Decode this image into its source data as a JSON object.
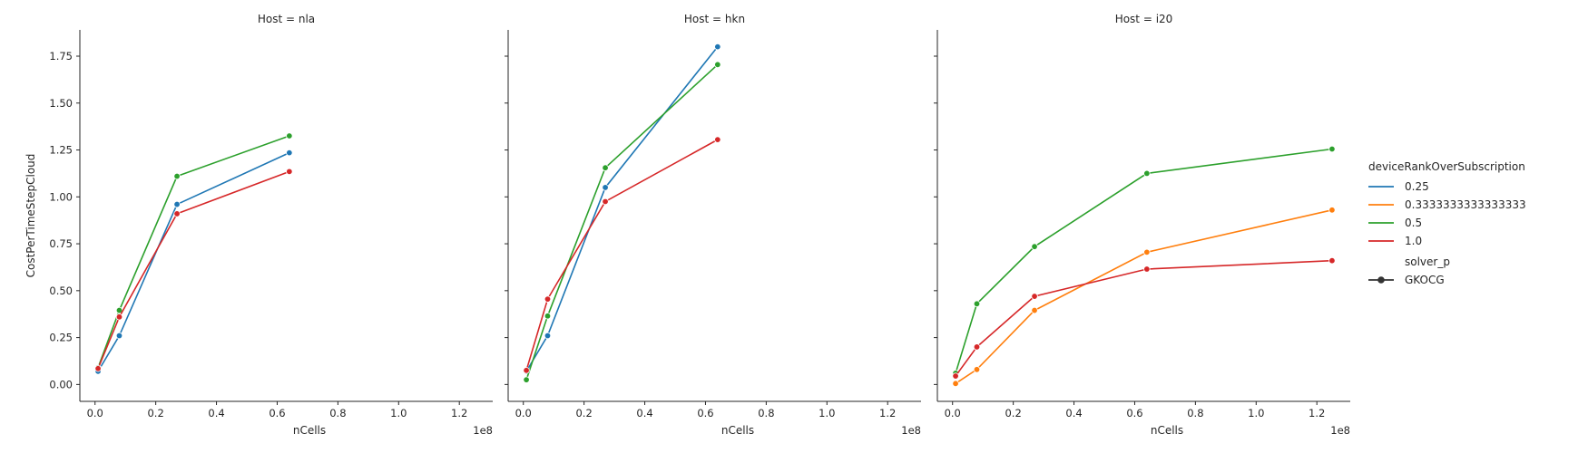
{
  "chart_data": {
    "type": "line",
    "x_label": "nCells",
    "y_label": "CostPerTimeStepCloud",
    "x_offset_label": "1e8",
    "x_ticks": [
      0,
      0.2,
      0.4,
      0.6,
      0.8,
      1.0,
      1.2
    ],
    "x_tick_labels": [
      "0.0",
      "0.2",
      "0.4",
      "0.6",
      "0.8",
      "1.0",
      "1.2"
    ],
    "x_range": [
      -0.05,
      1.31
    ],
    "y_ticks": [
      0,
      0.25,
      0.5,
      0.75,
      1.0,
      1.25,
      1.5,
      1.75
    ],
    "y_tick_labels": [
      "0.00",
      "0.25",
      "0.50",
      "0.75",
      "1.00",
      "1.25",
      "1.50",
      "1.75"
    ],
    "y_range": [
      -0.09,
      1.89
    ],
    "grid": false,
    "legend": {
      "placement": "right",
      "hue_title": "deviceRankOverSubscription",
      "hue_entries": [
        {
          "label": "0.25",
          "color": "#1f77b4"
        },
        {
          "label": "0.3333333333333333",
          "color": "#ff7f0e"
        },
        {
          "label": "0.5",
          "color": "#2ca02c"
        },
        {
          "label": "1.0",
          "color": "#d62728"
        }
      ],
      "style_title": "solver_p",
      "style_entries": [
        {
          "label": "GKOCG",
          "color": "#333333"
        }
      ]
    },
    "panels": [
      {
        "title": "Host = nla",
        "series": [
          {
            "name": "0.25",
            "color": "#1f77b4",
            "x": [
              0.01,
              0.08,
              0.27,
              0.64
            ],
            "y": [
              0.07,
              0.26,
              0.96,
              1.235
            ]
          },
          {
            "name": "0.5",
            "color": "#2ca02c",
            "x": [
              0.01,
              0.08,
              0.27,
              0.64
            ],
            "y": [
              0.09,
              0.395,
              1.11,
              1.325
            ]
          },
          {
            "name": "1.0",
            "color": "#d62728",
            "x": [
              0.01,
              0.08,
              0.27,
              0.64
            ],
            "y": [
              0.085,
              0.36,
              0.91,
              1.135
            ]
          }
        ]
      },
      {
        "title": "Host = hkn",
        "series": [
          {
            "name": "0.25",
            "color": "#1f77b4",
            "x": [
              0.01,
              0.08,
              0.27,
              0.64
            ],
            "y": [
              0.07,
              0.26,
              1.05,
              1.8
            ]
          },
          {
            "name": "0.5",
            "color": "#2ca02c",
            "x": [
              0.01,
              0.08,
              0.27,
              0.64
            ],
            "y": [
              0.025,
              0.365,
              1.155,
              1.705
            ]
          },
          {
            "name": "1.0",
            "color": "#d62728",
            "x": [
              0.01,
              0.08,
              0.27,
              0.64
            ],
            "y": [
              0.075,
              0.455,
              0.975,
              1.305
            ]
          }
        ]
      },
      {
        "title": "Host = i20",
        "series": [
          {
            "name": "0.3333333333333333",
            "color": "#ff7f0e",
            "x": [
              0.01,
              0.08,
              0.27,
              0.64,
              1.25
            ],
            "y": [
              0.005,
              0.08,
              0.395,
              0.705,
              0.93
            ]
          },
          {
            "name": "0.5",
            "color": "#2ca02c",
            "x": [
              0.01,
              0.08,
              0.27,
              0.64,
              1.25
            ],
            "y": [
              0.06,
              0.43,
              0.735,
              1.125,
              1.255
            ]
          },
          {
            "name": "1.0",
            "color": "#d62728",
            "x": [
              0.01,
              0.08,
              0.27,
              0.64,
              1.25
            ],
            "y": [
              0.045,
              0.2,
              0.47,
              0.615,
              0.66
            ]
          }
        ]
      }
    ]
  }
}
